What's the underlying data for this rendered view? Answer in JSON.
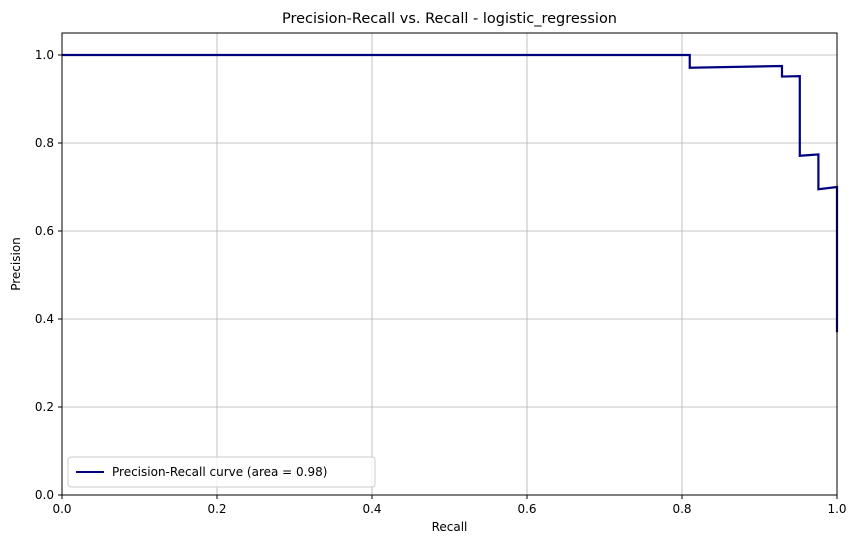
{
  "chart_data": {
    "type": "line",
    "title": "Precision-Recall vs. Recall - logistic_regression",
    "xlabel": "Recall",
    "ylabel": "Precision",
    "xlim": [
      0.0,
      1.0
    ],
    "ylim": [
      0.0,
      1.05
    ],
    "x_ticks": [
      "0.0",
      "0.2",
      "0.4",
      "0.6",
      "0.8",
      "1.0"
    ],
    "y_ticks": [
      "0.0",
      "0.2",
      "0.4",
      "0.6",
      "0.8",
      "1.0"
    ],
    "grid": true,
    "legend_position": "lower-left",
    "series": [
      {
        "name": "Precision-Recall curve (area = 0.98)",
        "color": "#000080",
        "x": [
          0.0,
          0.81,
          0.81,
          0.929,
          0.929,
          0.952,
          0.952,
          0.976,
          0.976,
          1.0,
          1.0
        ],
        "y": [
          1.0,
          1.0,
          0.971,
          0.975,
          0.951,
          0.952,
          0.771,
          0.774,
          0.695,
          0.7,
          0.37
        ]
      }
    ]
  }
}
